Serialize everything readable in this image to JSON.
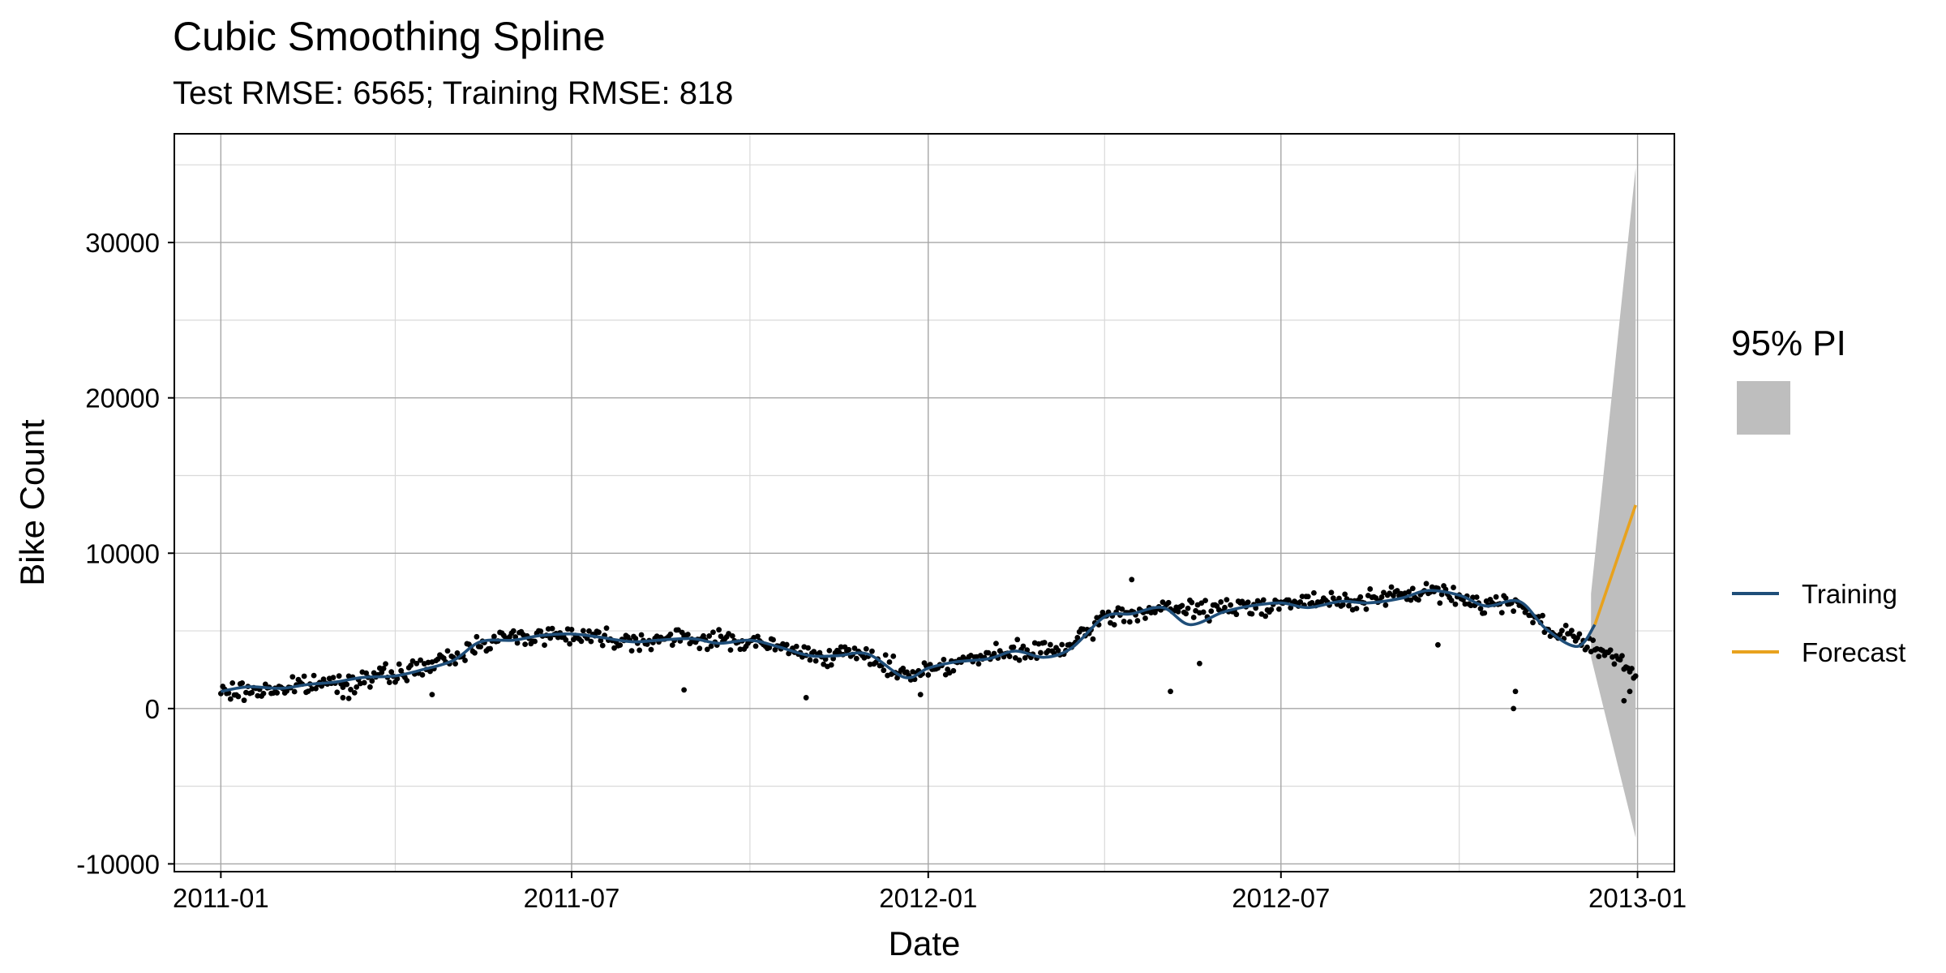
{
  "chart_data": {
    "type": "line",
    "title": "Cubic Smoothing Spline",
    "subtitle": "Test RMSE: 6565; Training RMSE: 818",
    "xlabel": "Date",
    "ylabel": "Bike Count",
    "xlim": [
      "2010-12-08",
      "2013-01-20"
    ],
    "ylim": [
      -10500,
      37000
    ],
    "x_ticks": [
      {
        "date": "2011-01-01",
        "label": "2011-01"
      },
      {
        "date": "2011-07-01",
        "label": "2011-07"
      },
      {
        "date": "2012-01-01",
        "label": "2012-01"
      },
      {
        "date": "2012-07-01",
        "label": "2012-07"
      },
      {
        "date": "2013-01-01",
        "label": "2013-01"
      }
    ],
    "x_minor_ticks": [
      "2011-04-01",
      "2011-10-01",
      "2012-04-01",
      "2012-10-01"
    ],
    "y_ticks": [
      -10000,
      0,
      10000,
      20000,
      30000
    ],
    "y_minor_ticks": [
      -5000,
      5000,
      15000,
      25000,
      35000
    ],
    "grid": true,
    "legend": {
      "position": "right",
      "fill_title": "95% PI",
      "fill_color": "#bebebe",
      "items": [
        {
          "label": "Training",
          "color": "#1f4e79"
        },
        {
          "label": "Forecast",
          "color": "#e8a21e"
        }
      ]
    },
    "series": [
      {
        "name": "Training",
        "color": "#1f4e79",
        "points": [
          [
            "2011-01-01",
            1100
          ],
          [
            "2011-01-15",
            1400
          ],
          [
            "2011-02-01",
            1300
          ],
          [
            "2011-02-15",
            1550
          ],
          [
            "2011-03-01",
            1700
          ],
          [
            "2011-03-15",
            2000
          ],
          [
            "2011-04-01",
            2100
          ],
          [
            "2011-04-15",
            2500
          ],
          [
            "2011-05-01",
            3100
          ],
          [
            "2011-05-15",
            4300
          ],
          [
            "2011-06-01",
            4400
          ],
          [
            "2011-06-15",
            4700
          ],
          [
            "2011-07-01",
            4800
          ],
          [
            "2011-07-15",
            4600
          ],
          [
            "2011-08-01",
            4300
          ],
          [
            "2011-08-15",
            4400
          ],
          [
            "2011-09-01",
            4500
          ],
          [
            "2011-09-15",
            4200
          ],
          [
            "2011-10-01",
            4400
          ],
          [
            "2011-10-15",
            4000
          ],
          [
            "2011-11-01",
            3400
          ],
          [
            "2011-11-15",
            3400
          ],
          [
            "2011-12-01",
            3500
          ],
          [
            "2011-12-20",
            2000
          ],
          [
            "2012-01-01",
            2600
          ],
          [
            "2012-01-15",
            3000
          ],
          [
            "2012-02-01",
            3200
          ],
          [
            "2012-02-15",
            3700
          ],
          [
            "2012-03-01",
            3300
          ],
          [
            "2012-03-15",
            3900
          ],
          [
            "2012-04-01",
            5900
          ],
          [
            "2012-04-15",
            6100
          ],
          [
            "2012-05-01",
            6500
          ],
          [
            "2012-05-15",
            5400
          ],
          [
            "2012-06-01",
            6200
          ],
          [
            "2012-06-15",
            6600
          ],
          [
            "2012-07-01",
            6800
          ],
          [
            "2012-07-15",
            6500
          ],
          [
            "2012-08-01",
            6900
          ],
          [
            "2012-08-15",
            6800
          ],
          [
            "2012-09-01",
            7100
          ],
          [
            "2012-09-15",
            7600
          ],
          [
            "2012-10-01",
            7300
          ],
          [
            "2012-10-15",
            6600
          ],
          [
            "2012-11-01",
            6900
          ],
          [
            "2012-11-15",
            5100
          ],
          [
            "2012-12-01",
            4000
          ],
          [
            "2012-12-10",
            5400
          ]
        ]
      },
      {
        "name": "Forecast",
        "color": "#e8a21e",
        "points": [
          [
            "2012-12-10",
            5400
          ],
          [
            "2012-12-31",
            13100
          ]
        ]
      }
    ],
    "prediction_interval": {
      "color": "#bebebe",
      "x": [
        "2012-12-08",
        "2012-12-31"
      ],
      "lower": [
        3300,
        -8300
      ],
      "upper": [
        7400,
        34800
      ]
    },
    "observations": {
      "color": "#000000",
      "anchors": [
        [
          "2011-01-01",
          1000
        ],
        [
          "2011-02-01",
          1300
        ],
        [
          "2011-03-01",
          1700
        ],
        [
          "2011-04-01",
          2200
        ],
        [
          "2011-05-01",
          3200
        ],
        [
          "2011-05-15",
          4300
        ],
        [
          "2011-06-01",
          4600
        ],
        [
          "2011-07-01",
          4800
        ],
        [
          "2011-08-01",
          4400
        ],
        [
          "2011-09-01",
          4500
        ],
        [
          "2011-10-01",
          4300
        ],
        [
          "2011-11-01",
          3500
        ],
        [
          "2011-12-01",
          3400
        ],
        [
          "2011-12-20",
          2200
        ],
        [
          "2012-01-15",
          3000
        ],
        [
          "2012-02-15",
          3600
        ],
        [
          "2012-03-15",
          3900
        ],
        [
          "2012-04-01",
          5900
        ],
        [
          "2012-05-01",
          6400
        ],
        [
          "2012-06-01",
          6400
        ],
        [
          "2012-07-01",
          6800
        ],
        [
          "2012-08-01",
          6900
        ],
        [
          "2012-09-01",
          7200
        ],
        [
          "2012-09-15",
          7600
        ],
        [
          "2012-10-15",
          6700
        ],
        [
          "2012-11-01",
          6900
        ],
        [
          "2012-11-15",
          5100
        ],
        [
          "2012-12-01",
          4600
        ],
        [
          "2012-12-31",
          2300
        ]
      ],
      "outliers": [
        [
          "2011-03-05",
          700
        ],
        [
          "2011-03-08",
          650
        ],
        [
          "2011-04-20",
          900
        ],
        [
          "2011-08-28",
          1200
        ],
        [
          "2011-10-30",
          700
        ],
        [
          "2011-12-28",
          900
        ],
        [
          "2012-04-15",
          8300
        ],
        [
          "2012-05-05",
          1100
        ],
        [
          "2012-05-20",
          2900
        ],
        [
          "2012-09-20",
          4100
        ],
        [
          "2012-10-29",
          0
        ],
        [
          "2012-10-30",
          1100
        ],
        [
          "2012-12-25",
          500
        ],
        [
          "2012-12-28",
          1100
        ]
      ]
    }
  }
}
